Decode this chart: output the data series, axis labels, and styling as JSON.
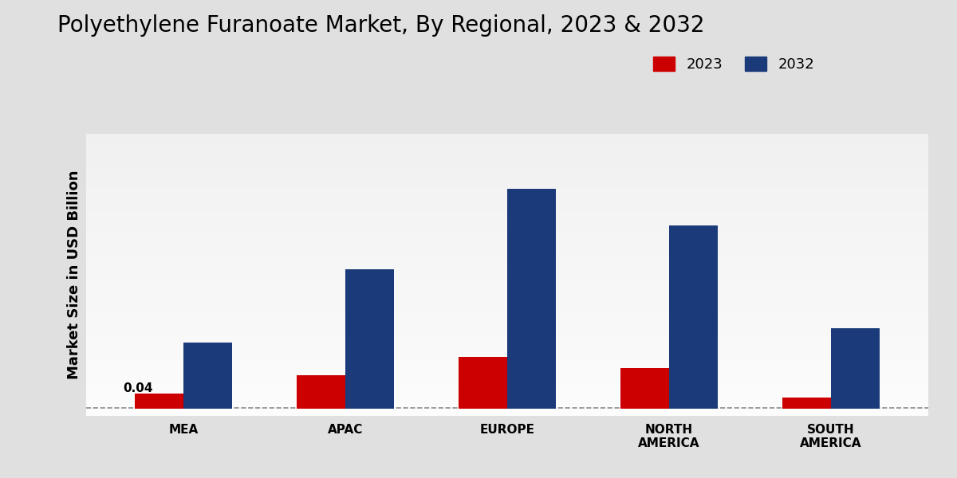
{
  "title": "Polyethylene Furanoate Market, By Regional, 2023 & 2032",
  "ylabel": "Market Size in USD Billion",
  "categories": [
    "MEA",
    "APAC",
    "EUROPE",
    "NORTH\nAMERICA",
    "SOUTH\nAMERICA"
  ],
  "values_2023": [
    0.04,
    0.09,
    0.14,
    0.11,
    0.03
  ],
  "values_2032": [
    0.18,
    0.38,
    0.6,
    0.5,
    0.22
  ],
  "color_2023": "#cc0000",
  "color_2032": "#1a3a7a",
  "annotation_text": "0.04",
  "bar_width": 0.3,
  "legend_labels": [
    "2023",
    "2032"
  ],
  "title_fontsize": 20,
  "axis_label_fontsize": 13,
  "tick_fontsize": 11,
  "legend_fontsize": 13
}
